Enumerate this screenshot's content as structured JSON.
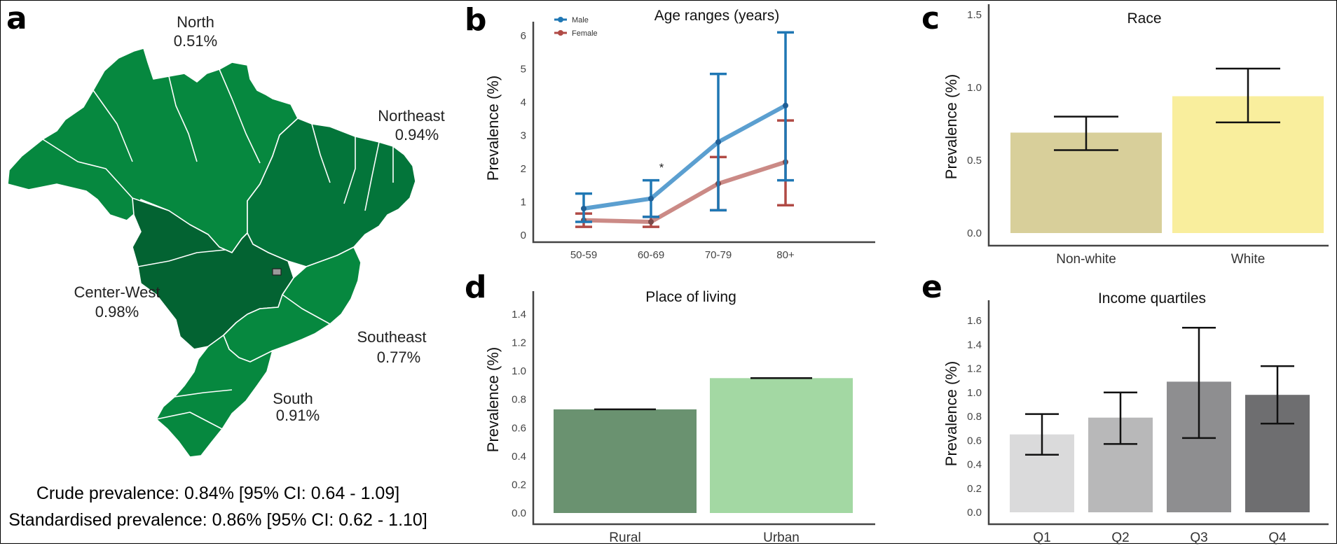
{
  "panel_letters": {
    "a": "a",
    "b": "b",
    "c": "c",
    "d": "d",
    "e": "e"
  },
  "colors": {
    "map_light": "#06883f",
    "map_mid": "#03753a",
    "map_dark": "#036332",
    "male": "#1f77b4",
    "female": "#b04a45",
    "race_nonwhite": "#d8cf9a",
    "race_white": "#f9ee9d",
    "rural": "#6a9270",
    "urban": "#a3d8a3",
    "q1": "#dadadb",
    "q2": "#b8b8b9",
    "q3": "#8e8e90",
    "q4": "#6e6e70"
  },
  "map": {
    "regions": [
      {
        "name": "North",
        "value": "0.51%"
      },
      {
        "name": "Northeast",
        "value": "0.94%"
      },
      {
        "name": "Center-West",
        "value": "0.98%"
      },
      {
        "name": "Southeast",
        "value": "0.77%"
      },
      {
        "name": "South",
        "value": "0.91%"
      }
    ],
    "crude": "Crude prevalence: 0.84% [95% CI: 0.64 - 1.09]",
    "standardised": "Standardised prevalence: 0.86% [95% CI: 0.62 - 1.10]"
  },
  "chart_data": [
    {
      "type": "line",
      "title": "Age ranges (years)",
      "ylabel": "Prevalence (%)",
      "xlabel": "",
      "categories": [
        "50-59",
        "60-69",
        "70-79",
        "80+"
      ],
      "ylim": [
        0,
        6
      ],
      "yticks": [
        "0",
        "1",
        "2",
        "3",
        "4",
        "5",
        "6"
      ],
      "annotation": "*",
      "series": [
        {
          "name": "Male",
          "values": [
            0.8,
            1.1,
            2.8,
            3.9
          ],
          "ci_low": [
            0.4,
            0.55,
            0.75,
            1.65
          ],
          "ci_high": [
            1.25,
            1.65,
            4.85,
            6.1
          ]
        },
        {
          "name": "Female",
          "values": [
            0.45,
            0.4,
            1.55,
            2.2
          ],
          "ci_low": [
            0.25,
            0.25,
            0.75,
            0.9
          ],
          "ci_high": [
            0.65,
            0.55,
            2.35,
            3.45
          ]
        }
      ]
    },
    {
      "type": "bar",
      "title": "Race",
      "ylabel": "Prevalence (%)",
      "categories": [
        "Non-white",
        "White"
      ],
      "values": [
        0.69,
        0.94
      ],
      "ci_low": [
        0.57,
        0.76
      ],
      "ci_high": [
        0.8,
        1.13
      ],
      "ylim": [
        0,
        1.5
      ],
      "yticks": [
        "0.0",
        "0.5",
        "1.0",
        "1.5"
      ]
    },
    {
      "type": "bar",
      "title": "Place of living",
      "ylabel": "Prevalence (%)",
      "categories": [
        "Rural",
        "Urban"
      ],
      "values": [
        0.73,
        0.95
      ],
      "ci_low": [
        0.73,
        0.95
      ],
      "ci_high": [
        0.73,
        0.95
      ],
      "ylim": [
        0,
        1.4
      ],
      "yticks": [
        "0.0",
        "0.2",
        "0.4",
        "0.6",
        "0.8",
        "1.0",
        "1.2",
        "1.4"
      ]
    },
    {
      "type": "bar",
      "title": "Income quartiles",
      "ylabel": "Prevalence (%)",
      "categories": [
        "Q1",
        "Q2",
        "Q3",
        "Q4"
      ],
      "values": [
        0.65,
        0.79,
        1.09,
        0.98
      ],
      "ci_low": [
        0.48,
        0.57,
        0.62,
        0.74
      ],
      "ci_high": [
        0.82,
        1.0,
        1.54,
        1.22
      ],
      "ylim": [
        0,
        1.6
      ],
      "yticks": [
        "0.0",
        "0.2",
        "0.4",
        "0.6",
        "0.8",
        "1.0",
        "1.2",
        "1.4",
        "1.6"
      ]
    }
  ]
}
